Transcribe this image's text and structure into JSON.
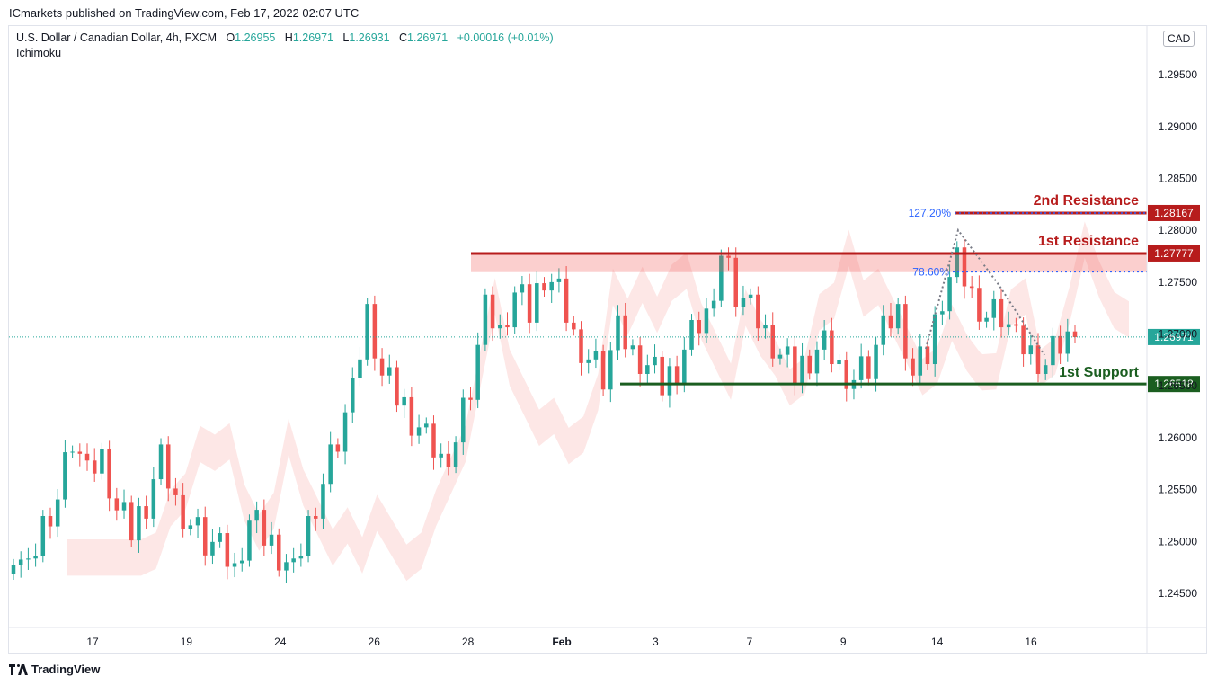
{
  "header": {
    "publisher": "ICmarkets published on TradingView.com, Feb 17, 2022 02:07 UTC"
  },
  "legend": {
    "symbol": "U.S. Dollar / Canadian Dollar, 4h, FXCM",
    "open_label": "O",
    "open": "1.26955",
    "high_label": "H",
    "high": "1.26971",
    "low_label": "L",
    "low": "1.26931",
    "close_label": "C",
    "close": "1.26971",
    "change": "+0.00016 (+0.01%)",
    "indicator": "Ichimoku"
  },
  "currency": "CAD",
  "brand": "TradingView",
  "colors": {
    "bull": "#26a69a",
    "bear": "#ef5350",
    "resistance": "#b71c1c",
    "support": "#1b5e20",
    "fib": "#2962ff"
  },
  "chart_data": {
    "type": "candlestick",
    "symbol": "USDCAD",
    "timeframe": "4h",
    "y_axis": {
      "ticks": [
        "1.29500",
        "1.29000",
        "1.28500",
        "1.28000",
        "1.27500",
        "1.27000",
        "1.26500",
        "1.26000",
        "1.25500",
        "1.25000",
        "1.24500"
      ],
      "range": [
        1.2417,
        1.2997
      ]
    },
    "x_axis": {
      "ticks": [
        "17",
        "19",
        "24",
        "26",
        "28",
        "Feb",
        "3",
        "7",
        "9",
        "14",
        "16"
      ]
    },
    "levels": [
      {
        "name": "2nd Resistance",
        "price": "1.28167",
        "role": "resistance"
      },
      {
        "name": "1st Resistance",
        "price": "1.27777",
        "role": "resistance"
      },
      {
        "name": "1st Support",
        "price": "1.26518",
        "role": "support"
      }
    ],
    "last_price": "1.26971",
    "fib_labels": [
      "127.20%",
      "78.60%"
    ],
    "approx_close_path": [
      1.2495,
      1.247,
      1.252,
      1.2545,
      1.26,
      1.256,
      1.258,
      1.253,
      1.251,
      1.254,
      1.258,
      1.254,
      1.252,
      1.25,
      1.249,
      1.247,
      1.252,
      1.2505,
      1.249,
      1.247,
      1.252,
      1.256,
      1.26,
      1.264,
      1.272,
      1.266,
      1.264,
      1.262,
      1.26,
      1.258,
      1.26,
      1.265,
      1.272,
      1.27,
      1.274,
      1.272,
      1.276,
      1.274,
      1.27,
      1.268,
      1.266,
      1.27,
      1.268,
      1.267,
      1.265,
      1.267,
      1.27,
      1.272,
      1.278,
      1.274,
      1.272,
      1.27,
      1.268,
      1.266,
      1.268,
      1.269,
      1.267,
      1.266,
      1.267,
      1.27,
      1.272,
      1.266,
      1.268,
      1.274,
      1.277,
      1.274,
      1.272,
      1.272,
      1.269,
      1.268,
      1.267,
      1.269,
      1.2697
    ]
  }
}
